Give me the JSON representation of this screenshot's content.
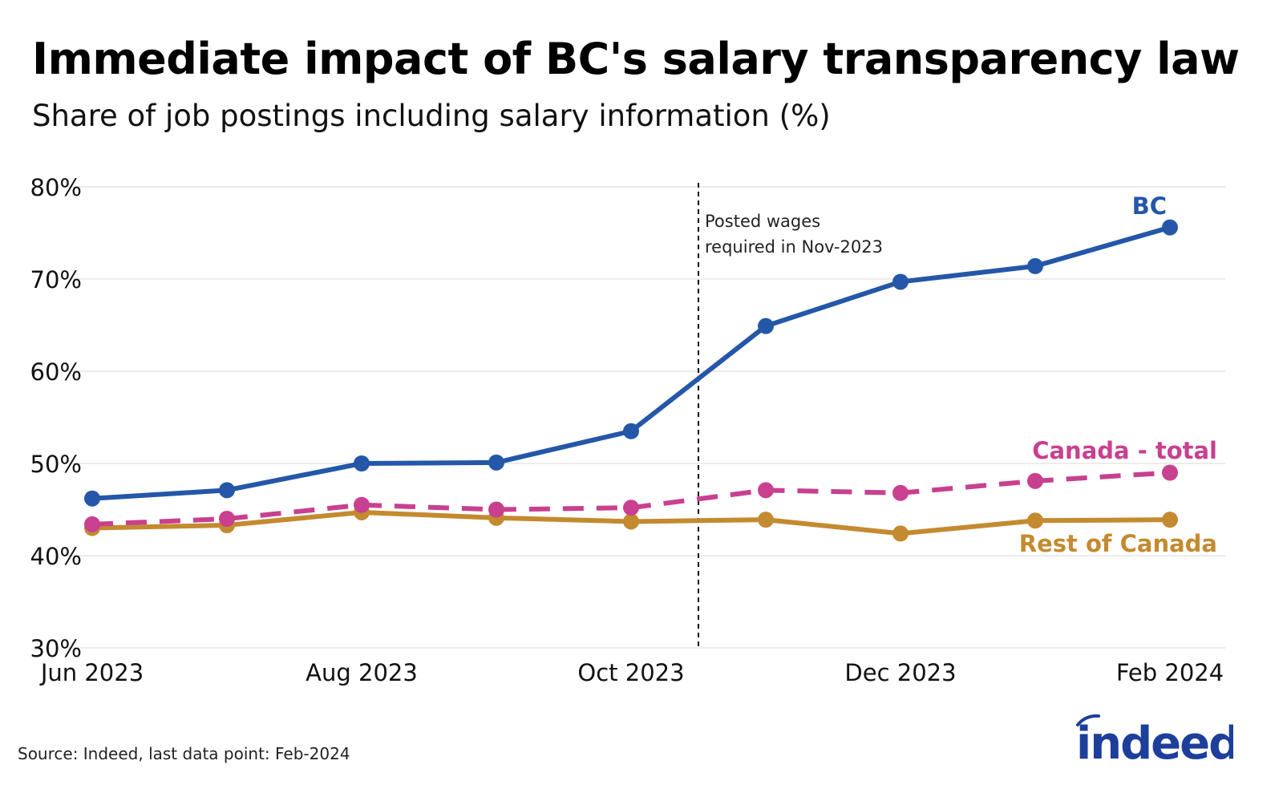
{
  "title": "Immediate impact of BC's salary transparency law",
  "subtitle": "Share of job postings including salary information (%)",
  "source": "Source: Indeed, last data point: Feb-2024",
  "logo_text": "indeed",
  "colors": {
    "bc": "#2457a8",
    "canada_total": "#c8408f",
    "rest_of_canada": "#c48a30",
    "logo": "#1d3f9b"
  },
  "chart_data": {
    "type": "line",
    "x": [
      "2023-06",
      "2023-07",
      "2023-08",
      "2023-09",
      "2023-10",
      "2023-11",
      "2023-12",
      "2024-01",
      "2024-02"
    ],
    "xticks": [
      {
        "x": "2023-06",
        "label": "Jun 2023"
      },
      {
        "x": "2023-08",
        "label": "Aug 2023"
      },
      {
        "x": "2023-10",
        "label": "Oct 2023"
      },
      {
        "x": "2023-12",
        "label": "Dec 2023"
      },
      {
        "x": "2024-02",
        "label": "Feb 2024"
      }
    ],
    "ylim": [
      30,
      80
    ],
    "yticks": [
      30,
      40,
      50,
      60,
      70,
      80
    ],
    "ytick_format": "%",
    "grid": "horizontal",
    "series": [
      {
        "name": "BC",
        "style": "solid",
        "color": "#2457a8",
        "values": [
          46.2,
          47.1,
          50.0,
          50.1,
          53.5,
          64.9,
          69.7,
          71.4,
          75.6
        ]
      },
      {
        "name": "Canada - total",
        "style": "dashed",
        "color": "#c8408f",
        "values": [
          43.4,
          44.0,
          45.5,
          45.0,
          45.2,
          47.1,
          46.8,
          48.1,
          49.0
        ]
      },
      {
        "name": "Rest of Canada",
        "style": "solid",
        "color": "#c48a30",
        "values": [
          43.0,
          43.3,
          44.7,
          44.1,
          43.7,
          43.9,
          42.4,
          43.8,
          43.9
        ]
      }
    ],
    "annotation": {
      "x": "2023-10-16",
      "lines": [
        "Posted wages",
        "required in Nov-2023"
      ]
    }
  }
}
